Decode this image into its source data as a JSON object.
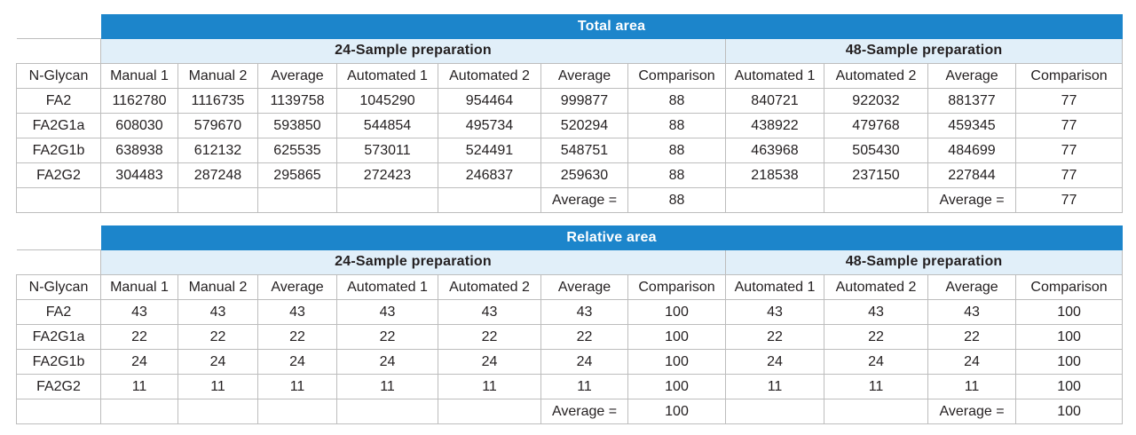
{
  "tables": [
    {
      "title": "Total area",
      "groups": [
        "24-Sample preparation",
        "48-Sample preparation"
      ],
      "columns": [
        "N-Glycan",
        "Manual 1",
        "Manual  2",
        "Average",
        "Automated 1",
        "Automated 2",
        "Average",
        "Comparison",
        "Automated 1",
        "Automated 2",
        "Average",
        "Comparison"
      ],
      "rows": [
        [
          "FA2",
          "1162780",
          "1116735",
          "1139758",
          "1045290",
          "954464",
          "999877",
          "88",
          "840721",
          "922032",
          "881377",
          "77"
        ],
        [
          "FA2G1a",
          "608030",
          "579670",
          "593850",
          "544854",
          "495734",
          "520294",
          "88",
          "438922",
          "479768",
          "459345",
          "77"
        ],
        [
          "FA2G1b",
          "638938",
          "612132",
          "625535",
          "573011",
          "524491",
          "548751",
          "88",
          "463968",
          "505430",
          "484699",
          "77"
        ],
        [
          "FA2G2",
          "304483",
          "287248",
          "295865",
          "272423",
          "246837",
          "259630",
          "88",
          "218538",
          "237150",
          "227844",
          "77"
        ],
        [
          "",
          "",
          "",
          "",
          "",
          "",
          "Average =",
          "88",
          "",
          "",
          "Average =",
          "77"
        ]
      ]
    },
    {
      "title": "Relative area",
      "groups": [
        "24-Sample preparation",
        "48-Sample preparation"
      ],
      "columns": [
        "N-Glycan",
        "Manual 1",
        "Manual  2",
        "Average",
        "Automated 1",
        "Automated 2",
        "Average",
        "Comparison",
        "Automated 1",
        "Automated 2",
        "Average",
        "Comparison"
      ],
      "rows": [
        [
          "FA2",
          "43",
          "43",
          "43",
          "43",
          "43",
          "43",
          "100",
          "43",
          "43",
          "43",
          "100"
        ],
        [
          "FA2G1a",
          "22",
          "22",
          "22",
          "22",
          "22",
          "22",
          "100",
          "22",
          "22",
          "22",
          "100"
        ],
        [
          "FA2G1b",
          "24",
          "24",
          "24",
          "24",
          "24",
          "24",
          "100",
          "24",
          "24",
          "24",
          "100"
        ],
        [
          "FA2G2",
          "11",
          "11",
          "11",
          "11",
          "11",
          "11",
          "100",
          "11",
          "11",
          "11",
          "100"
        ],
        [
          "",
          "",
          "",
          "",
          "",
          "",
          "Average =",
          "100",
          "",
          "",
          "Average =",
          "100"
        ]
      ]
    }
  ],
  "colors": {
    "title_band": "#1c85cb",
    "group_band": "#e1eff9",
    "border": "#bdbdbd",
    "text": "#231f20"
  }
}
